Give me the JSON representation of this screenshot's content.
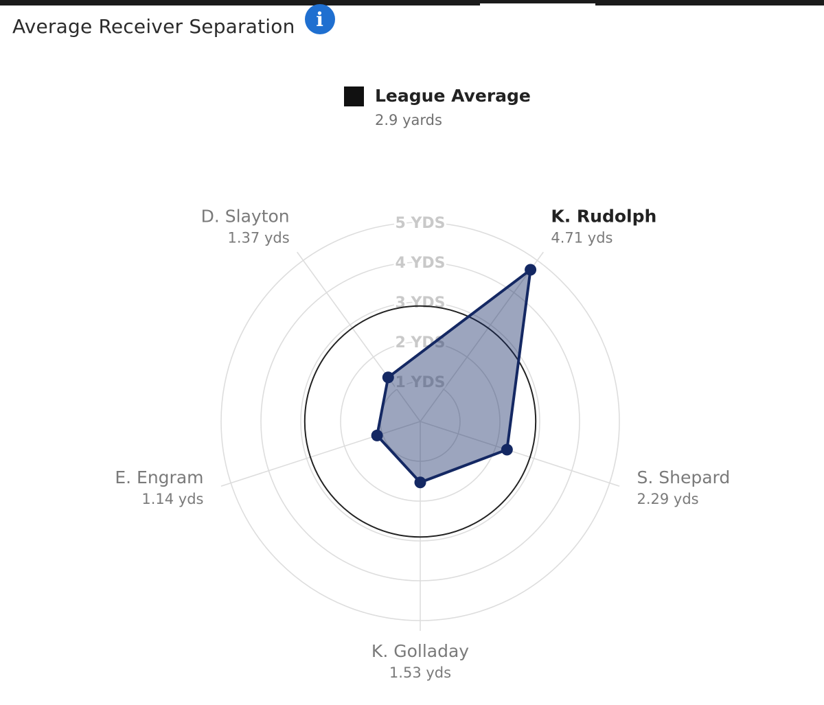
{
  "header": {
    "title": "Average Receiver Separation",
    "info_icon": "info-icon"
  },
  "legend": {
    "label": "League Average",
    "value": "2.9 yards",
    "color": "#111111"
  },
  "colors": {
    "series_stroke": "#142863",
    "series_fill": "#142863",
    "grid": "#dddddd",
    "league_ring": "#222222",
    "info_icon": "#1f6fd0"
  },
  "chart_data": {
    "type": "radar",
    "axes": [
      {
        "name": "K. Rudolph",
        "value": 4.71,
        "value_label": "4.71 yds",
        "highlight": true
      },
      {
        "name": "S. Shepard",
        "value": 2.29,
        "value_label": "2.29 yds",
        "highlight": false
      },
      {
        "name": "K. Golladay",
        "value": 1.53,
        "value_label": "1.53 yds",
        "highlight": false
      },
      {
        "name": "E. Engram",
        "value": 1.14,
        "value_label": "1.14 yds",
        "highlight": false
      },
      {
        "name": "D. Slayton",
        "value": 1.37,
        "value_label": "1.37 yds",
        "highlight": false
      }
    ],
    "rings": [
      1,
      2,
      3,
      4,
      5
    ],
    "ring_labels": [
      "1 YDS",
      "2 YDS",
      "3 YDS",
      "4 YDS",
      "5 YDS"
    ],
    "max": 5,
    "reference": {
      "name": "League Average",
      "value": 2.9
    }
  }
}
